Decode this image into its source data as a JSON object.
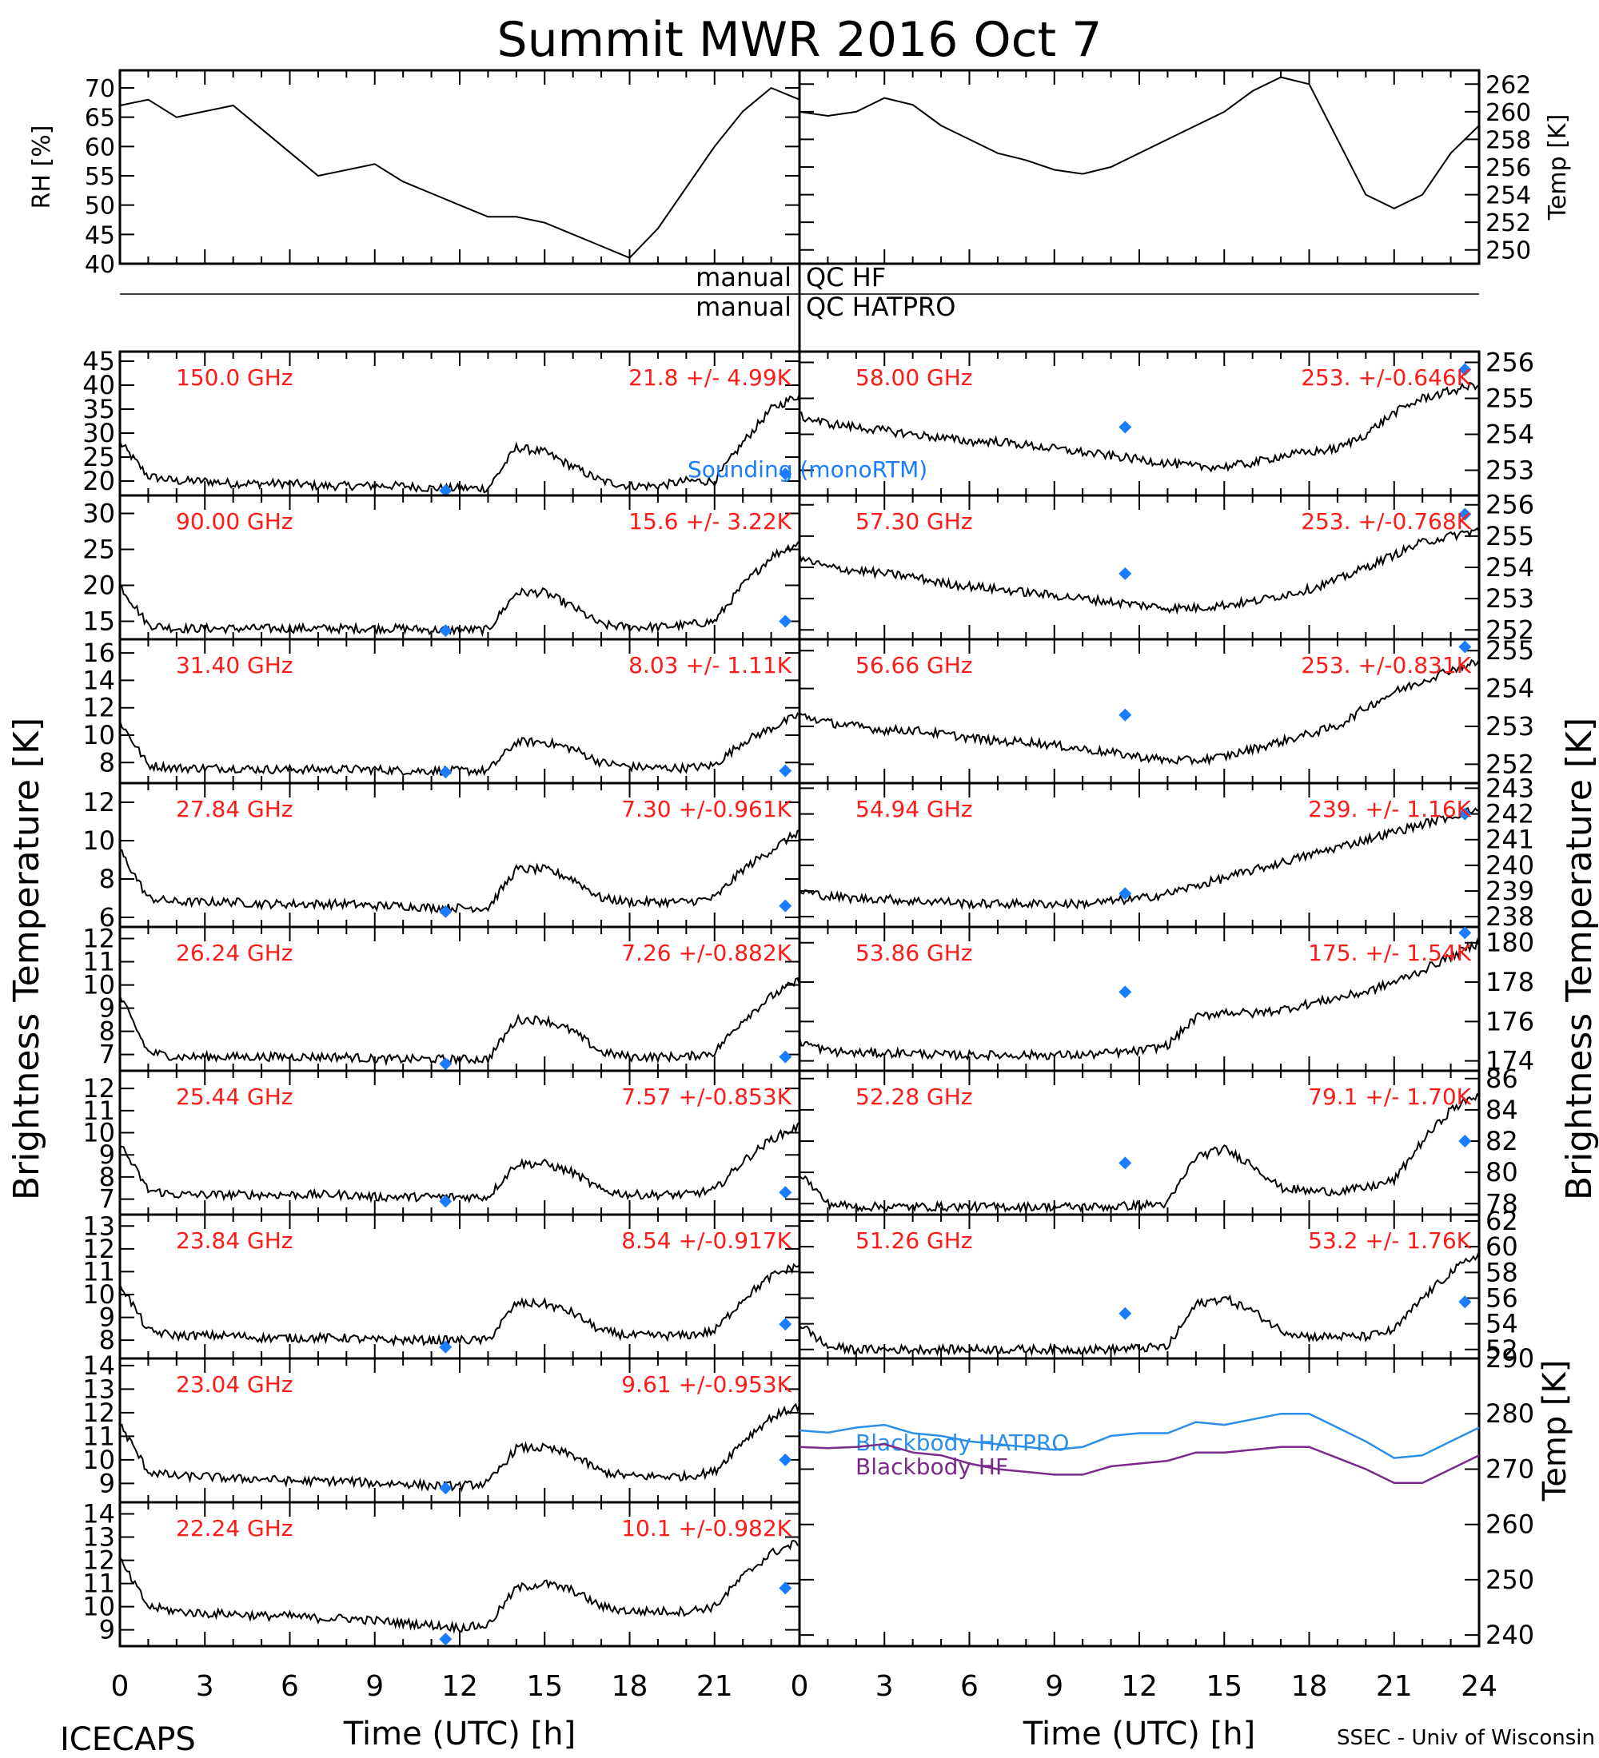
{
  "title": "Summit MWR 2016 Oct  7",
  "footer": {
    "left": "ICECAPS",
    "right": "SSEC - Univ of Wisconsin"
  },
  "xlabel": "Time (UTC) [h]",
  "ylabel_brightness": "Brightness Temperature [K]",
  "qc_labels": {
    "left1": "manual",
    "right1": "QC HF",
    "left2": "manual",
    "right2": "QC HATPRO"
  },
  "sounding_label": "Sounding (monoRTM)",
  "colors": {
    "trace": "#000000",
    "label": "#ff1a1a",
    "sounding": "#1a7cff",
    "hatpro": "#2b8fe8",
    "hf": "#7a2a8a"
  },
  "chart_data": [
    {
      "type": "line",
      "id": "rh",
      "ylabel": "RH [%]",
      "xlim": [
        0,
        24
      ],
      "ylim": [
        40,
        73
      ],
      "yticks": [
        40,
        45,
        50,
        55,
        60,
        65,
        70
      ],
      "x": [
        0,
        1,
        2,
        3,
        4,
        5,
        6,
        7,
        8,
        9,
        10,
        11,
        12,
        13,
        14,
        15,
        16,
        17,
        18,
        19,
        20,
        21,
        22,
        23,
        24
      ],
      "values": [
        67,
        68,
        65,
        66,
        67,
        63,
        59,
        55,
        56,
        57,
        54,
        52,
        50,
        48,
        48,
        47,
        45,
        43,
        41,
        46,
        53,
        60,
        66,
        70,
        68
      ]
    },
    {
      "type": "line",
      "id": "temp",
      "ylabel": "Temp [K]",
      "xlim": [
        0,
        24
      ],
      "ylim": [
        249,
        263
      ],
      "yticks": [
        250,
        252,
        254,
        256,
        258,
        260,
        262
      ],
      "x": [
        0,
        1,
        2,
        3,
        4,
        5,
        6,
        7,
        8,
        9,
        10,
        11,
        12,
        13,
        14,
        15,
        16,
        17,
        18,
        19,
        20,
        21,
        22,
        23,
        24
      ],
      "values": [
        260,
        259.7,
        260,
        261,
        260.5,
        259,
        258,
        257,
        256.5,
        255.8,
        255.5,
        256,
        257,
        258,
        259,
        260,
        261.5,
        262.5,
        262,
        258,
        254,
        253,
        254,
        257,
        259
      ]
    },
    {
      "type": "scatter",
      "id": "ch150",
      "label": "150.0 GHz",
      "stats": "21.8 +/-  4.99K",
      "ylim": [
        17,
        47
      ],
      "yticks": [
        20,
        25,
        30,
        35,
        40,
        45
      ],
      "profile": [
        28,
        21,
        20,
        20,
        19.5,
        19.5,
        19.5,
        19,
        19,
        19,
        19,
        18.5,
        18.5,
        18.5,
        27,
        26,
        23,
        20,
        19,
        19,
        20,
        20,
        28,
        35,
        38
      ],
      "sounding": [
        [
          11.5,
          18
        ],
        [
          23.5,
          21.5
        ]
      ]
    },
    {
      "type": "scatter",
      "id": "ch90",
      "label": "90.00 GHz",
      "stats": "15.6 +/-  3.22K",
      "ylim": [
        12.5,
        32.5
      ],
      "yticks": [
        15,
        20,
        25,
        30
      ],
      "profile": [
        20,
        14.5,
        14,
        14,
        14,
        14,
        14,
        14,
        14,
        14,
        14,
        13.8,
        13.8,
        13.8,
        19,
        19,
        17,
        14.5,
        14.2,
        14.2,
        14.5,
        15,
        20,
        24,
        26
      ],
      "sounding": [
        [
          11.5,
          13.7
        ],
        [
          23.5,
          15
        ]
      ]
    },
    {
      "type": "scatter",
      "id": "ch3140",
      "label": "31.40 GHz",
      "stats": "8.03 +/- 1.11K",
      "ylim": [
        6.5,
        17
      ],
      "yticks": [
        8,
        10,
        12,
        14,
        16
      ],
      "profile": [
        11,
        7.8,
        7.6,
        7.6,
        7.6,
        7.5,
        7.5,
        7.5,
        7.5,
        7.5,
        7.4,
        7.4,
        7.4,
        7.4,
        9.5,
        9.5,
        9,
        8,
        7.7,
        7.6,
        7.6,
        7.8,
        9.5,
        10.5,
        11.5
      ],
      "sounding": [
        [
          11.5,
          7.3
        ],
        [
          23.5,
          7.4
        ]
      ]
    },
    {
      "type": "scatter",
      "id": "ch2784",
      "label": "27.84 GHz",
      "stats": "7.30 +/-0.961K",
      "ylim": [
        5.5,
        13
      ],
      "yticks": [
        6,
        8,
        10,
        12
      ],
      "profile": [
        9.5,
        7,
        6.8,
        6.8,
        6.8,
        6.7,
        6.7,
        6.7,
        6.7,
        6.6,
        6.6,
        6.5,
        6.5,
        6.5,
        8.5,
        8.5,
        8,
        7,
        6.8,
        6.8,
        6.8,
        7,
        8.5,
        9.5,
        10.5
      ],
      "sounding": [
        [
          11.5,
          6.3
        ],
        [
          23.5,
          6.6
        ]
      ]
    },
    {
      "type": "scatter",
      "id": "ch2624",
      "label": "26.24 GHz",
      "stats": "7.26 +/-0.882K",
      "ylim": [
        6.3,
        12.5
      ],
      "yticks": [
        7,
        8,
        9,
        10,
        11,
        12
      ],
      "profile": [
        9.5,
        7.1,
        6.9,
        6.9,
        6.9,
        6.9,
        6.9,
        6.9,
        6.9,
        6.8,
        6.8,
        6.8,
        6.8,
        6.8,
        8.5,
        8.5,
        8,
        7.1,
        6.9,
        6.9,
        6.9,
        7.1,
        8.5,
        9.5,
        10.2
      ],
      "sounding": [
        [
          11.5,
          6.6
        ],
        [
          23.5,
          6.9
        ]
      ]
    },
    {
      "type": "scatter",
      "id": "ch2544",
      "label": "25.44 GHz",
      "stats": "7.57 +/-0.853K",
      "ylim": [
        6.3,
        12.8
      ],
      "yticks": [
        7,
        8,
        9,
        10,
        11,
        12
      ],
      "profile": [
        9.5,
        7.4,
        7.2,
        7.2,
        7.2,
        7.2,
        7.2,
        7.2,
        7.2,
        7.1,
        7.1,
        7.1,
        7.1,
        7.1,
        8.6,
        8.6,
        8.2,
        7.4,
        7.2,
        7.2,
        7.2,
        7.4,
        8.7,
        9.7,
        10.3
      ],
      "sounding": [
        [
          11.5,
          6.9
        ],
        [
          23.5,
          7.3
        ]
      ]
    },
    {
      "type": "scatter",
      "id": "ch2384",
      "label": "23.84 GHz",
      "stats": "8.54 +/-0.917K",
      "ylim": [
        7.2,
        13.5
      ],
      "yticks": [
        8,
        9,
        10,
        11,
        12,
        13
      ],
      "profile": [
        10.5,
        8.4,
        8.2,
        8.2,
        8.2,
        8.1,
        8.1,
        8.1,
        8.1,
        8,
        8,
        8,
        8,
        8,
        9.6,
        9.6,
        9.2,
        8.4,
        8.2,
        8.2,
        8.2,
        8.4,
        9.8,
        10.8,
        11.3
      ],
      "sounding": [
        [
          11.5,
          7.7
        ],
        [
          23.5,
          8.7
        ]
      ]
    },
    {
      "type": "scatter",
      "id": "ch2304",
      "label": "23.04 GHz",
      "stats": "9.61 +/-0.953K",
      "ylim": [
        8.2,
        14.3
      ],
      "yticks": [
        9,
        10,
        11,
        12,
        13,
        14
      ],
      "profile": [
        11.5,
        9.5,
        9.3,
        9.3,
        9.2,
        9.2,
        9.1,
        9.1,
        9.1,
        9,
        9,
        8.9,
        8.9,
        9,
        10.5,
        10.5,
        10.2,
        9.5,
        9.3,
        9.3,
        9.3,
        9.5,
        10.8,
        11.8,
        12.3
      ],
      "sounding": [
        [
          11.5,
          8.8
        ],
        [
          23.5,
          10
        ]
      ]
    },
    {
      "type": "scatter",
      "id": "ch2224",
      "label": "22.24 GHz",
      "stats": "10.1 +/-0.982K",
      "ylim": [
        8.3,
        14.5
      ],
      "yticks": [
        9,
        10,
        11,
        12,
        13,
        14
      ],
      "profile": [
        12,
        10,
        9.8,
        9.7,
        9.7,
        9.6,
        9.6,
        9.5,
        9.5,
        9.4,
        9.3,
        9.2,
        9.1,
        9.2,
        10.8,
        11,
        10.7,
        10,
        9.8,
        9.8,
        9.8,
        10,
        11.3,
        12.3,
        12.8
      ],
      "sounding": [
        [
          11.5,
          8.6
        ],
        [
          23.5,
          10.8
        ]
      ]
    },
    {
      "type": "scatter",
      "id": "ch5800",
      "label": "58.00 GHz",
      "stats": "253. +/-0.646K",
      "ylim": [
        252.3,
        256.3
      ],
      "yticks": [
        253,
        254,
        255,
        256
      ],
      "profile": [
        254.5,
        254.3,
        254.2,
        254.1,
        254,
        253.9,
        253.8,
        253.8,
        253.7,
        253.6,
        253.5,
        253.4,
        253.3,
        253.2,
        253.1,
        253.1,
        253.2,
        253.4,
        253.5,
        253.6,
        254,
        254.6,
        255,
        255.2,
        255.4
      ],
      "sounding": [
        [
          11.5,
          254.2
        ],
        [
          23.5,
          255.8
        ]
      ]
    },
    {
      "type": "scatter",
      "id": "ch5730",
      "label": "57.30 GHz",
      "stats": "253. +/-0.768K",
      "ylim": [
        251.7,
        256.3
      ],
      "yticks": [
        252,
        253,
        254,
        255,
        256
      ],
      "profile": [
        254.3,
        254,
        253.9,
        253.8,
        253.7,
        253.5,
        253.4,
        253.3,
        253.2,
        253.1,
        253,
        252.9,
        252.8,
        252.7,
        252.7,
        252.8,
        252.9,
        253.1,
        253.3,
        253.6,
        254,
        254.4,
        254.8,
        255,
        255.2
      ],
      "sounding": [
        [
          11.5,
          253.8
        ],
        [
          23.5,
          255.7
        ]
      ]
    },
    {
      "type": "scatter",
      "id": "ch5666",
      "label": "56.66 GHz",
      "stats": "253. +/-0.831K",
      "ylim": [
        251.5,
        255.3
      ],
      "yticks": [
        252,
        253,
        254,
        255
      ],
      "profile": [
        253.3,
        253.1,
        253,
        252.9,
        252.9,
        252.8,
        252.7,
        252.6,
        252.6,
        252.5,
        252.4,
        252.3,
        252.2,
        252.1,
        252.1,
        252.2,
        252.4,
        252.6,
        252.8,
        253,
        253.5,
        253.9,
        254.2,
        254.5,
        254.7
      ],
      "sounding": [
        [
          11.5,
          253.3
        ],
        [
          23.5,
          255.1
        ]
      ]
    },
    {
      "type": "scatter",
      "id": "ch5494",
      "label": "54.94 GHz",
      "stats": "239. +/- 1.16K",
      "ylim": [
        237.6,
        243.2
      ],
      "yticks": [
        238,
        239,
        240,
        241,
        242,
        243
      ],
      "profile": [
        239,
        238.8,
        238.7,
        238.7,
        238.6,
        238.6,
        238.5,
        238.5,
        238.5,
        238.5,
        238.5,
        238.6,
        238.7,
        238.9,
        239.2,
        239.5,
        239.8,
        240.1,
        240.4,
        240.7,
        241,
        241.3,
        241.6,
        241.9,
        242.2
      ],
      "sounding": [
        [
          11.5,
          238.9
        ],
        [
          23.5,
          242
        ]
      ]
    },
    {
      "type": "scatter",
      "id": "ch5386",
      "label": "53.86 GHz",
      "stats": "175. +/- 1.54K",
      "ylim": [
        173.5,
        180.8
      ],
      "yticks": [
        174,
        176,
        178,
        180
      ],
      "profile": [
        175,
        174.5,
        174.4,
        174.4,
        174.4,
        174.3,
        174.3,
        174.3,
        174.3,
        174.3,
        174.3,
        174.4,
        174.5,
        174.8,
        176.2,
        176.5,
        176.4,
        176.6,
        176.9,
        177.2,
        177.5,
        178,
        178.6,
        179.3,
        180
      ],
      "sounding": [
        [
          11.5,
          177.5
        ],
        [
          23.5,
          180.5
        ]
      ]
    },
    {
      "type": "scatter",
      "id": "ch5228",
      "label": "52.28 GHz",
      "stats": "79.1 +/- 1.70K",
      "ylim": [
        77.3,
        86.5
      ],
      "yticks": [
        78,
        80,
        82,
        84,
        86
      ],
      "profile": [
        80,
        78,
        77.8,
        77.8,
        77.8,
        77.8,
        77.8,
        77.8,
        77.8,
        77.8,
        77.8,
        77.8,
        77.9,
        78,
        81,
        81.5,
        80.5,
        79,
        78.8,
        78.8,
        79,
        79.5,
        82,
        84,
        85
      ],
      "sounding": [
        [
          11.5,
          80.6
        ],
        [
          23.5,
          82
        ]
      ]
    },
    {
      "type": "scatter",
      "id": "ch5126",
      "label": "51.26 GHz",
      "stats": "53.2 +/- 1.76K",
      "ylim": [
        51.3,
        62.5
      ],
      "yticks": [
        52,
        54,
        56,
        58,
        60,
        62
      ],
      "profile": [
        54,
        52.2,
        52,
        52,
        52,
        52,
        52,
        52,
        52,
        52,
        52,
        52,
        52.1,
        52.2,
        55.5,
        56,
        55,
        53.5,
        53,
        53,
        53,
        53.5,
        56,
        58,
        59.5
      ],
      "sounding": [
        [
          11.5,
          54.8
        ],
        [
          23.5,
          55.7
        ]
      ]
    },
    {
      "type": "line",
      "id": "bbtemp",
      "ylabel": "Temp [K]",
      "ylim": [
        238,
        290
      ],
      "yticks": [
        240,
        250,
        260,
        270,
        280,
        290
      ],
      "series": [
        {
          "name": "Blackbody HATPRO",
          "x": [
            0,
            1,
            2,
            3,
            4,
            5,
            6,
            7,
            8,
            9,
            10,
            11,
            12,
            13,
            14,
            15,
            16,
            17,
            18,
            19,
            20,
            21,
            22,
            23,
            24
          ],
          "values": [
            277,
            276.6,
            277.5,
            278,
            276.5,
            276,
            275,
            274.5,
            274,
            273.5,
            274,
            276,
            276.5,
            276.5,
            278.5,
            278,
            279,
            280,
            280,
            277.5,
            275,
            272,
            272.5,
            275,
            277.5
          ]
        },
        {
          "name": "Blackbody HF",
          "x": [
            0,
            1,
            2,
            3,
            4,
            5,
            6,
            7,
            8,
            9,
            10,
            11,
            12,
            13,
            14,
            15,
            16,
            17,
            18,
            19,
            20,
            21,
            22,
            23,
            24
          ],
          "values": [
            274,
            273.8,
            274,
            274.5,
            273,
            272.5,
            271,
            270,
            269.5,
            269,
            269,
            270.5,
            271,
            271.5,
            273,
            273,
            273.5,
            274,
            274,
            272,
            270,
            267.5,
            267.5,
            270,
            272.5
          ]
        }
      ]
    }
  ]
}
